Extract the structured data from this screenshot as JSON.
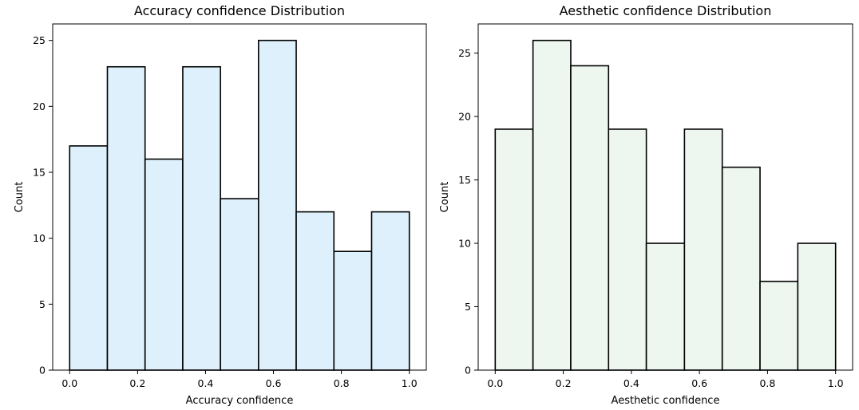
{
  "chart_data": [
    {
      "type": "bar",
      "title": "Accuracy confidence Distribution",
      "xlabel": "Accuracy confidence",
      "ylabel": "Count",
      "bin_edges": [
        0.0,
        0.111,
        0.222,
        0.333,
        0.444,
        0.556,
        0.667,
        0.778,
        0.889,
        1.0
      ],
      "values": [
        17,
        23,
        16,
        23,
        13,
        25,
        12,
        9,
        12
      ],
      "xlim": [
        -0.05,
        1.05
      ],
      "ylim": [
        0,
        26.25
      ],
      "xticks": [
        0.0,
        0.2,
        0.4,
        0.6,
        0.8,
        1.0
      ],
      "xtick_labels": [
        "0.0",
        "0.2",
        "0.4",
        "0.6",
        "0.8",
        "1.0"
      ],
      "yticks": [
        0,
        5,
        10,
        15,
        20,
        25
      ],
      "ytick_labels": [
        "0",
        "5",
        "10",
        "15",
        "20",
        "25"
      ],
      "color": "#ddf0fb",
      "grid": false
    },
    {
      "type": "bar",
      "title": "Aesthetic confidence Distribution",
      "xlabel": "Aesthetic confidence",
      "ylabel": "Count",
      "bin_edges": [
        0.0,
        0.111,
        0.222,
        0.333,
        0.444,
        0.556,
        0.667,
        0.778,
        0.889,
        1.0
      ],
      "values": [
        19,
        26,
        24,
        19,
        10,
        19,
        16,
        7,
        10
      ],
      "xlim": [
        -0.05,
        1.05
      ],
      "ylim": [
        0,
        27.3
      ],
      "xticks": [
        0.0,
        0.2,
        0.4,
        0.6,
        0.8,
        1.0
      ],
      "xtick_labels": [
        "0.0",
        "0.2",
        "0.4",
        "0.6",
        "0.8",
        "1.0"
      ],
      "yticks": [
        0,
        5,
        10,
        15,
        20,
        25
      ],
      "ytick_labels": [
        "0",
        "5",
        "10",
        "15",
        "20",
        "25"
      ],
      "color": "#edf6ef",
      "grid": false
    }
  ]
}
